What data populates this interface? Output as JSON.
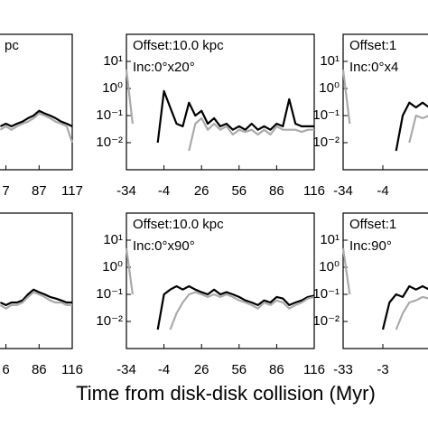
{
  "figure": {
    "xlabel": "Time from disk-disk collision (Myr)"
  },
  "chart_data": [
    {
      "type": "line",
      "log_y": true,
      "annotations": [
        "pc"
      ],
      "xlim": [
        50,
        117
      ],
      "ylim": [
        0.001,
        100
      ],
      "xticks": [
        {
          "value": 57,
          "label": "7"
        },
        87,
        117
      ],
      "x": [
        52,
        57,
        62,
        67,
        72,
        77,
        82,
        87,
        92,
        97,
        102,
        107,
        112,
        117
      ],
      "series": [
        {
          "name": "black",
          "color": "#000000",
          "values": [
            0.04,
            0.05,
            0.04,
            0.05,
            0.06,
            0.08,
            0.1,
            0.15,
            0.12,
            0.1,
            0.08,
            0.06,
            0.05,
            0.04
          ]
        },
        {
          "name": "gray",
          "color": "#aaaaaa",
          "values": [
            0.03,
            0.04,
            0.03,
            0.04,
            0.05,
            0.06,
            0.08,
            0.12,
            0.1,
            0.08,
            0.06,
            0.05,
            0.04,
            0.01
          ]
        }
      ]
    },
    {
      "type": "line",
      "log_y": true,
      "annotations": [
        "Offset:10.0 kpc",
        "Inc:0°x20°"
      ],
      "xlim": [
        -34,
        116
      ],
      "ylim": [
        0.001,
        100
      ],
      "xticks": [
        -34,
        -4,
        26,
        56,
        86,
        116
      ],
      "yticks": [
        {
          "value": 10,
          "label": "10¹"
        },
        {
          "value": 1,
          "label": "10⁰"
        },
        {
          "value": 0.1,
          "label": "10⁻¹"
        },
        {
          "value": 0.01,
          "label": "10⁻²"
        }
      ],
      "x": [
        -34,
        -29,
        -24,
        -19,
        -14,
        -9,
        -4,
        1,
        6,
        11,
        16,
        21,
        26,
        31,
        36,
        41,
        46,
        51,
        56,
        61,
        66,
        71,
        76,
        81,
        86,
        91,
        96,
        101,
        106,
        111,
        116
      ],
      "series": [
        {
          "name": "black",
          "color": "#000000",
          "values": [
            null,
            null,
            null,
            null,
            null,
            0.01,
            0.8,
            0.2,
            0.05,
            0.04,
            0.3,
            0.1,
            0.15,
            0.05,
            0.08,
            0.04,
            0.05,
            0.03,
            0.04,
            0.03,
            0.05,
            0.03,
            0.04,
            0.03,
            0.05,
            0.04,
            0.4,
            0.05,
            0.04,
            0.04,
            0.04
          ]
        },
        {
          "name": "gray",
          "color": "#aaaaaa",
          "values": [
            5,
            0.05,
            null,
            null,
            null,
            null,
            null,
            null,
            null,
            null,
            0.005,
            0.05,
            0.08,
            0.03,
            0.05,
            0.03,
            0.04,
            0.02,
            0.03,
            0.025,
            0.03,
            0.02,
            0.03,
            0.02,
            0.04,
            0.03,
            0.03,
            0.03,
            0.025,
            0.03,
            0.03
          ]
        }
      ]
    },
    {
      "type": "line",
      "log_y": true,
      "annotations": [
        "Offset:1",
        "Inc:0°x4"
      ],
      "xlim": [
        -34,
        41
      ],
      "ylim": [
        0.001,
        100
      ],
      "xticks": [
        -34,
        -4
      ],
      "yticks": [
        {
          "value": 10,
          "label": "10¹"
        },
        {
          "value": 1,
          "label": "10⁰"
        },
        {
          "value": 0.1,
          "label": "10⁻¹"
        },
        {
          "value": 0.01,
          "label": "10⁻²"
        }
      ],
      "x": [
        -34,
        -29,
        -24,
        -19,
        -14,
        -9,
        -4,
        1,
        6,
        11,
        16,
        21,
        26,
        31,
        36,
        41
      ],
      "series": [
        {
          "name": "black",
          "color": "#000000",
          "values": [
            null,
            null,
            null,
            null,
            null,
            null,
            null,
            null,
            0.005,
            0.1,
            0.3,
            0.2,
            0.3,
            0.2,
            0.15,
            0.2
          ]
        },
        {
          "name": "gray",
          "color": "#aaaaaa",
          "values": [
            5,
            0.05,
            null,
            null,
            null,
            null,
            null,
            null,
            null,
            null,
            0.01,
            0.1,
            0.08,
            0.1,
            0.1,
            0.1
          ]
        }
      ]
    },
    {
      "type": "line",
      "log_y": true,
      "annotations": [],
      "xlim": [
        49,
        116
      ],
      "ylim": [
        0.001,
        100
      ],
      "xticks": [
        {
          "value": 56,
          "label": "6"
        },
        86,
        116
      ],
      "x": [
        51,
        56,
        61,
        66,
        71,
        76,
        81,
        86,
        91,
        96,
        101,
        106,
        111,
        116
      ],
      "series": [
        {
          "name": "black",
          "color": "#000000",
          "values": [
            0.05,
            0.04,
            0.05,
            0.05,
            0.06,
            0.1,
            0.15,
            0.12,
            0.1,
            0.08,
            0.07,
            0.06,
            0.05,
            0.05
          ]
        },
        {
          "name": "gray",
          "color": "#aaaaaa",
          "values": [
            0.04,
            0.03,
            0.04,
            0.04,
            0.05,
            0.08,
            0.12,
            0.1,
            0.08,
            0.06,
            0.05,
            0.05,
            0.04,
            0.04
          ]
        }
      ]
    },
    {
      "type": "line",
      "log_y": true,
      "annotations": [
        "Offset:10.0 kpc",
        "Inc:0°x90°"
      ],
      "xlim": [
        -34,
        116
      ],
      "ylim": [
        0.001,
        100
      ],
      "xticks": [
        -34,
        -4,
        26,
        56,
        86,
        116
      ],
      "yticks": [
        {
          "value": 10,
          "label": "10¹"
        },
        {
          "value": 1,
          "label": "10⁰"
        },
        {
          "value": 0.1,
          "label": "10⁻¹"
        },
        {
          "value": 0.01,
          "label": "10⁻²"
        }
      ],
      "x": [
        -34,
        -29,
        -24,
        -19,
        -14,
        -9,
        -4,
        1,
        6,
        11,
        16,
        21,
        26,
        31,
        36,
        41,
        46,
        51,
        56,
        61,
        66,
        71,
        76,
        81,
        86,
        91,
        96,
        101,
        106,
        111,
        116
      ],
      "series": [
        {
          "name": "black",
          "color": "#000000",
          "values": [
            null,
            null,
            null,
            null,
            null,
            0.005,
            0.1,
            0.15,
            0.2,
            0.15,
            0.2,
            0.15,
            0.12,
            0.1,
            0.15,
            0.1,
            0.12,
            0.1,
            0.08,
            0.06,
            0.05,
            0.04,
            0.06,
            0.05,
            0.08,
            0.07,
            0.04,
            0.05,
            0.06,
            0.08,
            0.09
          ]
        },
        {
          "name": "gray",
          "color": "#aaaaaa",
          "values": [
            5,
            0.1,
            null,
            null,
            null,
            null,
            null,
            0.005,
            0.02,
            0.05,
            0.1,
            0.12,
            0.1,
            0.08,
            0.1,
            0.08,
            0.1,
            0.08,
            0.06,
            0.05,
            0.04,
            0.03,
            0.05,
            0.04,
            0.06,
            0.05,
            0.03,
            0.04,
            0.05,
            0.07,
            0.08
          ]
        }
      ]
    },
    {
      "type": "line",
      "log_y": true,
      "annotations": [
        "Offset:1",
        "Inc:90°"
      ],
      "xlim": [
        -33,
        42
      ],
      "ylim": [
        0.001,
        100
      ],
      "xticks": [
        -33,
        -3
      ],
      "yticks": [
        {
          "value": 10,
          "label": "10¹"
        },
        {
          "value": 1,
          "label": "10⁰"
        },
        {
          "value": 0.1,
          "label": "10⁻¹"
        },
        {
          "value": 0.01,
          "label": "10⁻²"
        }
      ],
      "x": [
        -33,
        -28,
        -23,
        -18,
        -13,
        -8,
        -3,
        2,
        7,
        12,
        17,
        22,
        27,
        32,
        37,
        42
      ],
      "series": [
        {
          "name": "black",
          "color": "#000000",
          "values": [
            null,
            null,
            null,
            null,
            null,
            null,
            0.005,
            0.05,
            0.1,
            0.08,
            0.2,
            0.15,
            0.2,
            0.15,
            0.2,
            0.15
          ]
        },
        {
          "name": "gray",
          "color": "#aaaaaa",
          "values": [
            5,
            0.1,
            null,
            null,
            null,
            null,
            null,
            null,
            0.005,
            0.02,
            0.05,
            0.06,
            0.08,
            0.07,
            0.08,
            0.06
          ]
        }
      ]
    }
  ]
}
